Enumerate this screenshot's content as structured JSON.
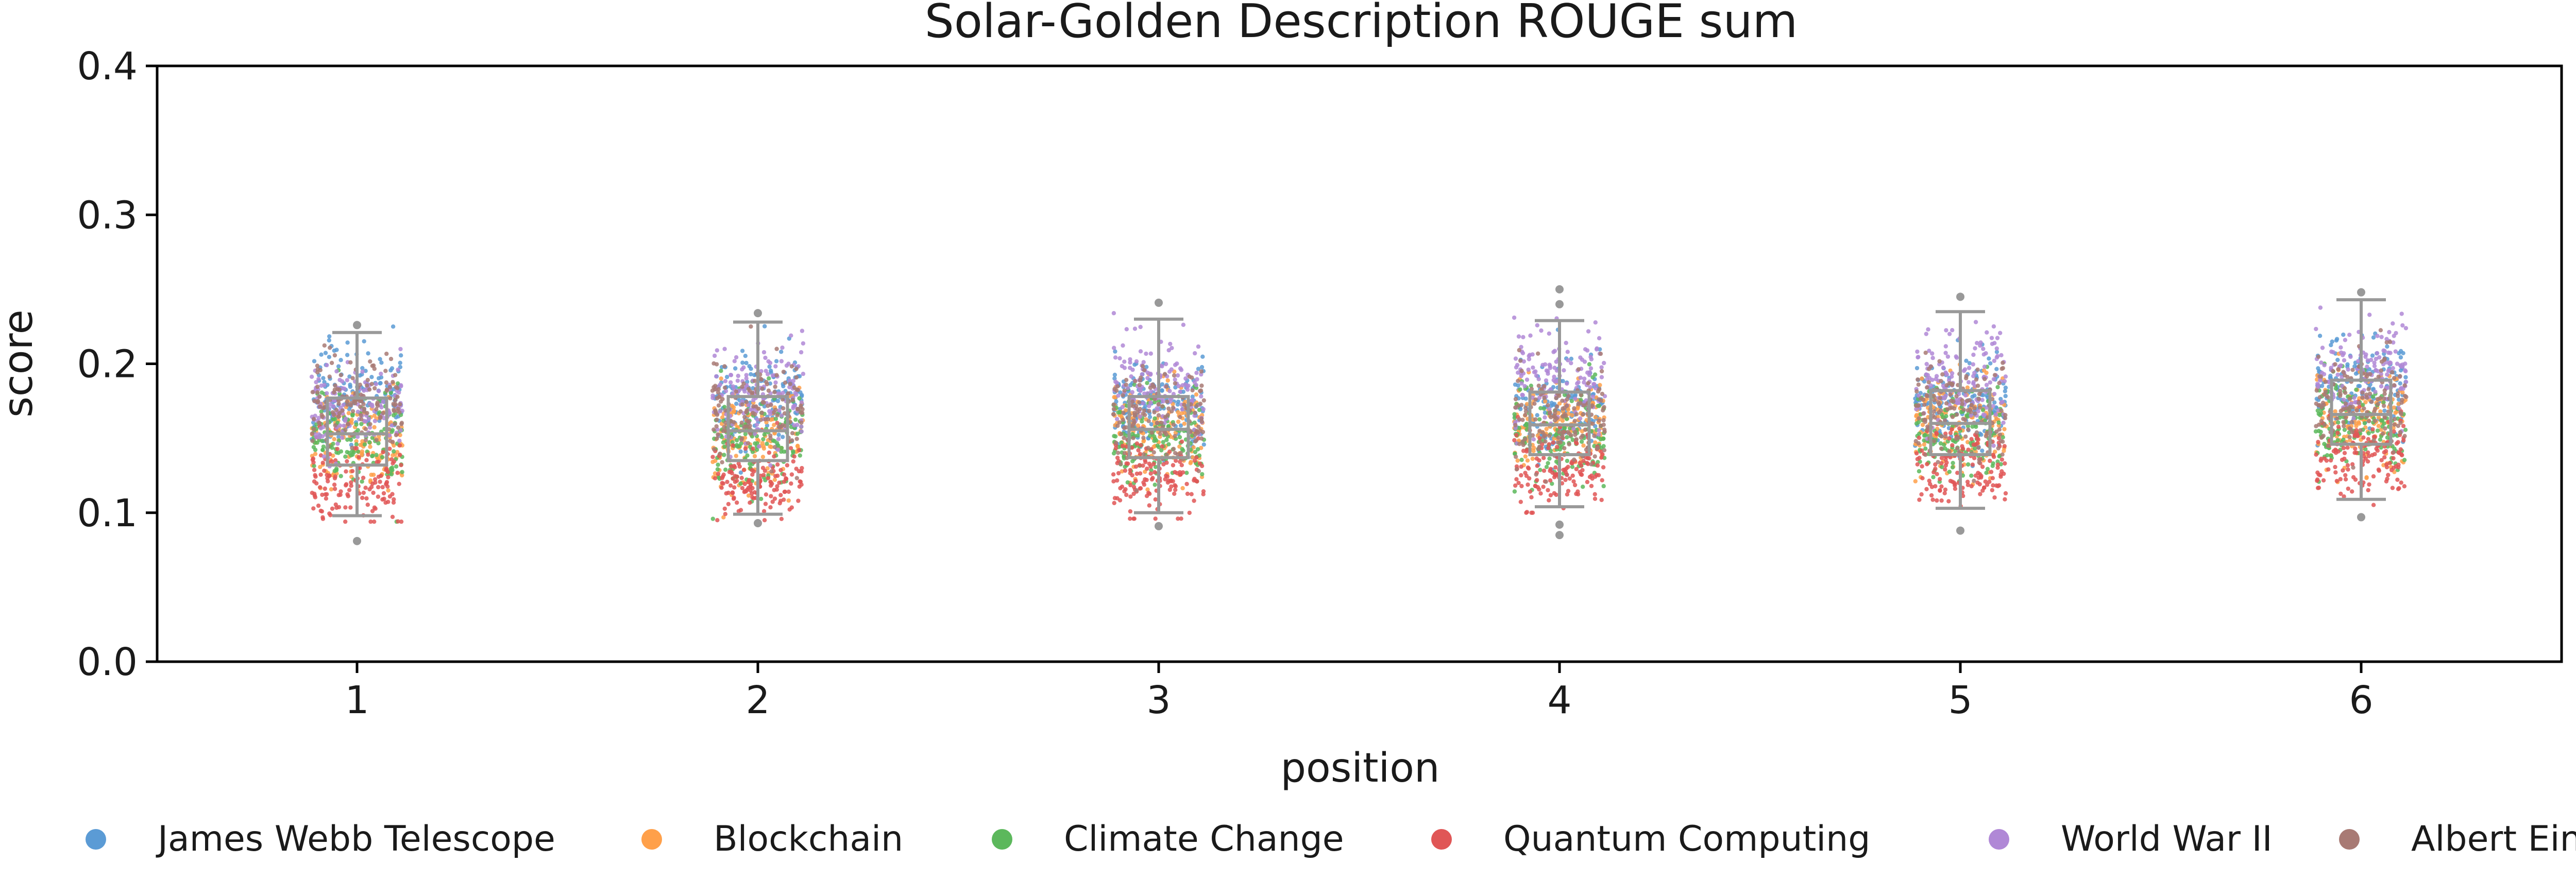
{
  "chart_data": {
    "type": "scatter",
    "subtype": "strip-with-boxplot",
    "title": "Solar-Golden Description ROUGE sum",
    "xlabel": "position",
    "ylabel": "score",
    "ylim": [
      0.0,
      0.4
    ],
    "yticks": [
      "0.0",
      "0.1",
      "0.2",
      "0.3",
      "0.4"
    ],
    "categories": [
      "1",
      "2",
      "3",
      "4",
      "5",
      "6"
    ],
    "grid": false,
    "legend_position": "bottom",
    "box_color": "#999999",
    "boxes": [
      {
        "category": "1",
        "whisker_low": 0.098,
        "q1": 0.132,
        "median": 0.153,
        "q3": 0.177,
        "whisker_high": 0.221,
        "outliers": [
          0.081,
          0.226
        ]
      },
      {
        "category": "2",
        "whisker_low": 0.099,
        "q1": 0.135,
        "median": 0.155,
        "q3": 0.178,
        "whisker_high": 0.228,
        "outliers": [
          0.093,
          0.234
        ]
      },
      {
        "category": "3",
        "whisker_low": 0.1,
        "q1": 0.137,
        "median": 0.156,
        "q3": 0.178,
        "whisker_high": 0.23,
        "outliers": [
          0.091,
          0.241
        ]
      },
      {
        "category": "4",
        "whisker_low": 0.104,
        "q1": 0.139,
        "median": 0.159,
        "q3": 0.181,
        "whisker_high": 0.229,
        "outliers": [
          0.085,
          0.092,
          0.24,
          0.25
        ]
      },
      {
        "category": "5",
        "whisker_low": 0.103,
        "q1": 0.139,
        "median": 0.16,
        "q3": 0.182,
        "whisker_high": 0.235,
        "outliers": [
          0.088,
          0.245
        ]
      },
      {
        "category": "6",
        "whisker_low": 0.109,
        "q1": 0.146,
        "median": 0.166,
        "q3": 0.189,
        "whisker_high": 0.243,
        "outliers": [
          0.097,
          0.248
        ]
      }
    ],
    "series": [
      {
        "name": "James Webb Telescope",
        "color": "#5b9bd5",
        "mean": [
          0.18,
          0.175,
          0.172,
          0.17,
          0.172,
          0.185
        ],
        "sd": 0.016
      },
      {
        "name": "Blockchain",
        "color": "#ffa04a",
        "mean": [
          0.148,
          0.15,
          0.155,
          0.158,
          0.16,
          0.162
        ],
        "sd": 0.016
      },
      {
        "name": "Climate Change",
        "color": "#5cb85c",
        "mean": [
          0.148,
          0.15,
          0.15,
          0.152,
          0.153,
          0.16
        ],
        "sd": 0.016
      },
      {
        "name": "Quantum Computing",
        "color": "#e05656",
        "mean": [
          0.12,
          0.122,
          0.125,
          0.128,
          0.13,
          0.138
        ],
        "sd": 0.014
      },
      {
        "name": "World War II",
        "color": "#b088d6",
        "mean": [
          0.17,
          0.18,
          0.185,
          0.19,
          0.192,
          0.198
        ],
        "sd": 0.016
      },
      {
        "name": "Albert Einstein",
        "color": "#a87a74",
        "mean": [
          0.172,
          0.168,
          0.165,
          0.165,
          0.168,
          0.175
        ],
        "sd": 0.016
      }
    ]
  }
}
